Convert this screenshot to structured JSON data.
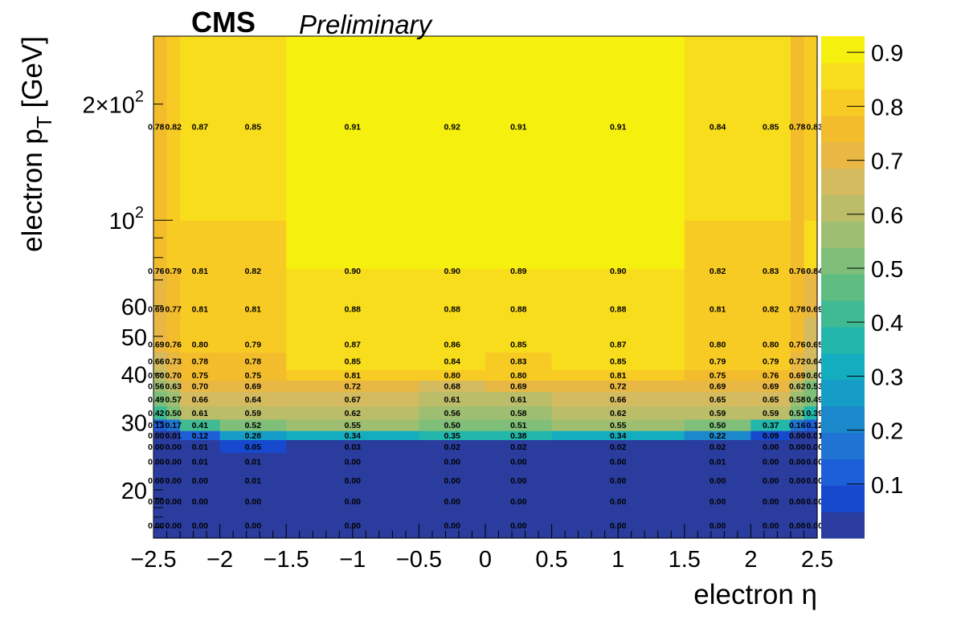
{
  "header": {
    "experiment": "CMS",
    "status": "Preliminary"
  },
  "chart_data": {
    "type": "heatmap",
    "title": "",
    "xlabel": "electron η",
    "ylabel": "electron p_T [GeV]",
    "xlim": [
      -2.5,
      2.5
    ],
    "ylim": [
      15,
      300
    ],
    "y_scale": "log",
    "x_edges": [
      -2.5,
      -2.4,
      -2.3,
      -2.0,
      -1.5,
      -1.0,
      -0.5,
      0.0,
      0.5,
      1.0,
      1.5,
      2.0,
      2.3,
      2.4,
      2.5
    ],
    "y_edges": [
      15,
      17.5,
      20,
      22.5,
      25,
      27,
      28.5,
      30.5,
      33,
      36,
      38.5,
      41,
      45.5,
      50,
      56,
      63,
      75,
      100,
      300
    ],
    "x_ticks": [
      -2.5,
      -2,
      -1.5,
      -1,
      -0.5,
      0,
      0.5,
      1,
      1.5,
      2,
      2.5
    ],
    "x_tick_labels": [
      "−2.5",
      "−2",
      "−1.5",
      "−1",
      "−0.5",
      "0",
      "0.5",
      "1",
      "1.5",
      "2",
      "2.5"
    ],
    "y_tick_values": [
      20,
      30,
      40,
      50,
      60,
      100,
      200
    ],
    "y_tick_labels": [
      {
        "base": "20",
        "exp": ""
      },
      {
        "base": "30",
        "exp": ""
      },
      {
        "base": "40",
        "exp": ""
      },
      {
        "base": "50",
        "exp": ""
      },
      {
        "base": "60",
        "exp": ""
      },
      {
        "base": "10",
        "exp": "2"
      },
      {
        "base": "2×10",
        "exp": "2"
      }
    ],
    "z_range": [
      0,
      0.93
    ],
    "z_ticks": [
      0.1,
      0.2,
      0.3,
      0.4,
      0.5,
      0.6,
      0.7,
      0.8,
      0.9
    ],
    "z_tick_labels": [
      "0.1",
      "0.2",
      "0.3",
      "0.4",
      "0.5",
      "0.6",
      "0.7",
      "0.8",
      "0.9"
    ],
    "label_x_positions": [
      -2.48,
      -2.35,
      -2.15,
      -1.75,
      -1.0,
      -0.25,
      0.25,
      1.0,
      1.75,
      2.15,
      2.35,
      2.48
    ],
    "rows": [
      {
        "y": 16.2,
        "labels": [
          "0.00",
          "0.00",
          "0.00",
          "0.00",
          "0.00",
          "0.00",
          "0.00",
          "0.00",
          "0.00",
          "0.00",
          "0.00",
          "0.00"
        ]
      },
      {
        "y": 18.7,
        "labels": [
          "0.00",
          "0.00",
          "0.00",
          "0.00",
          "0.00",
          "0.00",
          "0.00",
          "0.00",
          "0.00",
          "0.00",
          "0.00",
          "0.00"
        ]
      },
      {
        "y": 21.2,
        "labels": [
          "0.00",
          "0.00",
          "0.00",
          "0.01",
          "0.00",
          "0.00",
          "0.00",
          "0.00",
          "0.00",
          "0.00",
          "0.00",
          "0.00"
        ]
      },
      {
        "y": 23.7,
        "labels": [
          "0.00",
          "0.00",
          "0.01",
          "0.01",
          "0.00",
          "0.00",
          "0.00",
          "0.00",
          "0.01",
          "0.00",
          "0.00",
          "0.00"
        ]
      },
      {
        "y": 25.9,
        "labels": [
          "0.00",
          "0.00",
          "0.01",
          "0.05",
          "0.03",
          "0.02",
          "0.02",
          "0.02",
          "0.02",
          "0.00",
          "0.00",
          "0.00"
        ]
      },
      {
        "y": 27.7,
        "labels": [
          "0.00",
          "0.01",
          "0.12",
          "0.28",
          "0.34",
          "0.35",
          "0.38",
          "0.34",
          "0.22",
          "0.09",
          "0.00",
          "0.01"
        ]
      },
      {
        "y": 29.5,
        "labels": [
          "0.13",
          "0.17",
          "0.41",
          "0.52",
          "0.55",
          "0.50",
          "0.51",
          "0.55",
          "0.50",
          "0.37",
          "0.16",
          "0.12"
        ]
      },
      {
        "y": 31.7,
        "labels": [
          "0.42",
          "0.50",
          "0.61",
          "0.59",
          "0.62",
          "0.56",
          "0.58",
          "0.62",
          "0.59",
          "0.59",
          "0.51",
          "0.39"
        ]
      },
      {
        "y": 34.4,
        "labels": [
          "0.49",
          "0.57",
          "0.66",
          "0.64",
          "0.67",
          "0.61",
          "0.61",
          "0.66",
          "0.65",
          "0.65",
          "0.58",
          "0.49"
        ]
      },
      {
        "y": 37.2,
        "labels": [
          "0.56",
          "0.63",
          "0.70",
          "0.69",
          "0.72",
          "0.68",
          "0.69",
          "0.72",
          "0.69",
          "0.69",
          "0.62",
          "0.53"
        ]
      },
      {
        "y": 39.7,
        "labels": [
          "0.60",
          "0.70",
          "0.75",
          "0.75",
          "0.81",
          "0.80",
          "0.80",
          "0.81",
          "0.75",
          "0.76",
          "0.69",
          "0.60"
        ]
      },
      {
        "y": 43.2,
        "labels": [
          "0.66",
          "0.73",
          "0.78",
          "0.78",
          "0.85",
          "0.84",
          "0.83",
          "0.85",
          "0.79",
          "0.79",
          "0.72",
          "0.64"
        ]
      },
      {
        "y": 47.7,
        "labels": [
          "0.69",
          "0.76",
          "0.80",
          "0.79",
          "0.87",
          "0.86",
          "0.85",
          "0.87",
          "0.80",
          "0.80",
          "0.76",
          "0.65"
        ]
      },
      {
        "y": 59.0,
        "labels": [
          "0.69",
          "0.77",
          "0.81",
          "0.81",
          "0.88",
          "0.88",
          "0.88",
          "0.88",
          "0.81",
          "0.82",
          "0.78",
          "0.69"
        ]
      },
      {
        "y": 74.0,
        "labels": [
          "0.76",
          "0.79",
          "0.81",
          "0.82",
          "0.90",
          "0.90",
          "0.89",
          "0.90",
          "0.82",
          "0.83",
          "0.76",
          "0.84"
        ]
      },
      {
        "y": 175.0,
        "labels": [
          "0.78",
          "0.82",
          "0.87",
          "0.85",
          "0.91",
          "0.92",
          "0.91",
          "0.91",
          "0.84",
          "0.85",
          "0.78",
          "0.83"
        ]
      }
    ],
    "bins": [
      [
        0.0,
        0.0,
        0.0,
        0.0,
        0.0,
        0.0,
        0.0,
        0.0,
        0.0,
        0.0,
        0.0,
        0.0,
        0.0,
        0.0
      ],
      [
        0.0,
        0.0,
        0.0,
        0.0,
        0.0,
        0.0,
        0.0,
        0.0,
        0.0,
        0.0,
        0.0,
        0.0,
        0.0,
        0.0
      ],
      [
        0.0,
        0.0,
        0.0,
        0.01,
        0.0,
        0.0,
        0.0,
        0.0,
        0.0,
        0.0,
        0.0,
        0.0,
        0.0,
        0.0
      ],
      [
        0.0,
        0.0,
        0.01,
        0.01,
        0.0,
        0.0,
        0.0,
        0.0,
        0.0,
        0.01,
        0.01,
        0.0,
        0.0,
        0.0
      ],
      [
        0.0,
        0.0,
        0.01,
        0.05,
        0.03,
        0.03,
        0.02,
        0.02,
        0.02,
        0.02,
        0.02,
        0.0,
        0.0,
        0.0
      ],
      [
        0.0,
        0.01,
        0.12,
        0.28,
        0.34,
        0.34,
        0.35,
        0.38,
        0.34,
        0.34,
        0.22,
        0.09,
        0.0,
        0.01
      ],
      [
        0.13,
        0.17,
        0.41,
        0.52,
        0.55,
        0.55,
        0.5,
        0.51,
        0.55,
        0.55,
        0.5,
        0.37,
        0.16,
        0.12
      ],
      [
        0.42,
        0.5,
        0.61,
        0.59,
        0.62,
        0.62,
        0.56,
        0.58,
        0.62,
        0.62,
        0.59,
        0.59,
        0.51,
        0.39
      ],
      [
        0.49,
        0.57,
        0.66,
        0.64,
        0.67,
        0.67,
        0.61,
        0.61,
        0.66,
        0.66,
        0.65,
        0.65,
        0.58,
        0.49
      ],
      [
        0.56,
        0.63,
        0.7,
        0.69,
        0.72,
        0.72,
        0.68,
        0.69,
        0.72,
        0.72,
        0.69,
        0.69,
        0.62,
        0.53
      ],
      [
        0.6,
        0.7,
        0.75,
        0.75,
        0.81,
        0.81,
        0.8,
        0.8,
        0.81,
        0.81,
        0.75,
        0.76,
        0.69,
        0.6
      ],
      [
        0.66,
        0.73,
        0.78,
        0.78,
        0.85,
        0.85,
        0.84,
        0.83,
        0.85,
        0.85,
        0.79,
        0.79,
        0.72,
        0.64
      ],
      [
        0.69,
        0.76,
        0.8,
        0.79,
        0.87,
        0.87,
        0.86,
        0.85,
        0.87,
        0.87,
        0.8,
        0.8,
        0.76,
        0.65
      ],
      [
        0.69,
        0.76,
        0.8,
        0.79,
        0.87,
        0.87,
        0.86,
        0.85,
        0.87,
        0.87,
        0.8,
        0.8,
        0.76,
        0.65
      ],
      [
        0.69,
        0.77,
        0.81,
        0.81,
        0.88,
        0.88,
        0.88,
        0.88,
        0.88,
        0.88,
        0.81,
        0.82,
        0.78,
        0.69
      ],
      [
        0.69,
        0.77,
        0.81,
        0.81,
        0.88,
        0.88,
        0.88,
        0.88,
        0.88,
        0.88,
        0.81,
        0.82,
        0.78,
        0.69
      ],
      [
        0.76,
        0.79,
        0.81,
        0.82,
        0.9,
        0.9,
        0.9,
        0.89,
        0.9,
        0.9,
        0.82,
        0.83,
        0.76,
        0.84
      ],
      [
        0.78,
        0.82,
        0.87,
        0.85,
        0.91,
        0.91,
        0.92,
        0.91,
        0.91,
        0.91,
        0.84,
        0.85,
        0.78,
        0.83
      ]
    ],
    "palette": [
      "#2a3d9e",
      "#1649cd",
      "#1c5fd8",
      "#1f74d3",
      "#1b88cc",
      "#159dc7",
      "#14adbf",
      "#22b7aa",
      "#3fba93",
      "#5fbd81",
      "#7fbf79",
      "#9ebf71",
      "#bbbd69",
      "#d4bb60",
      "#e8b744",
      "#f3bc2c",
      "#f8cb24",
      "#f8dd1c",
      "#f6f00f"
    ]
  }
}
